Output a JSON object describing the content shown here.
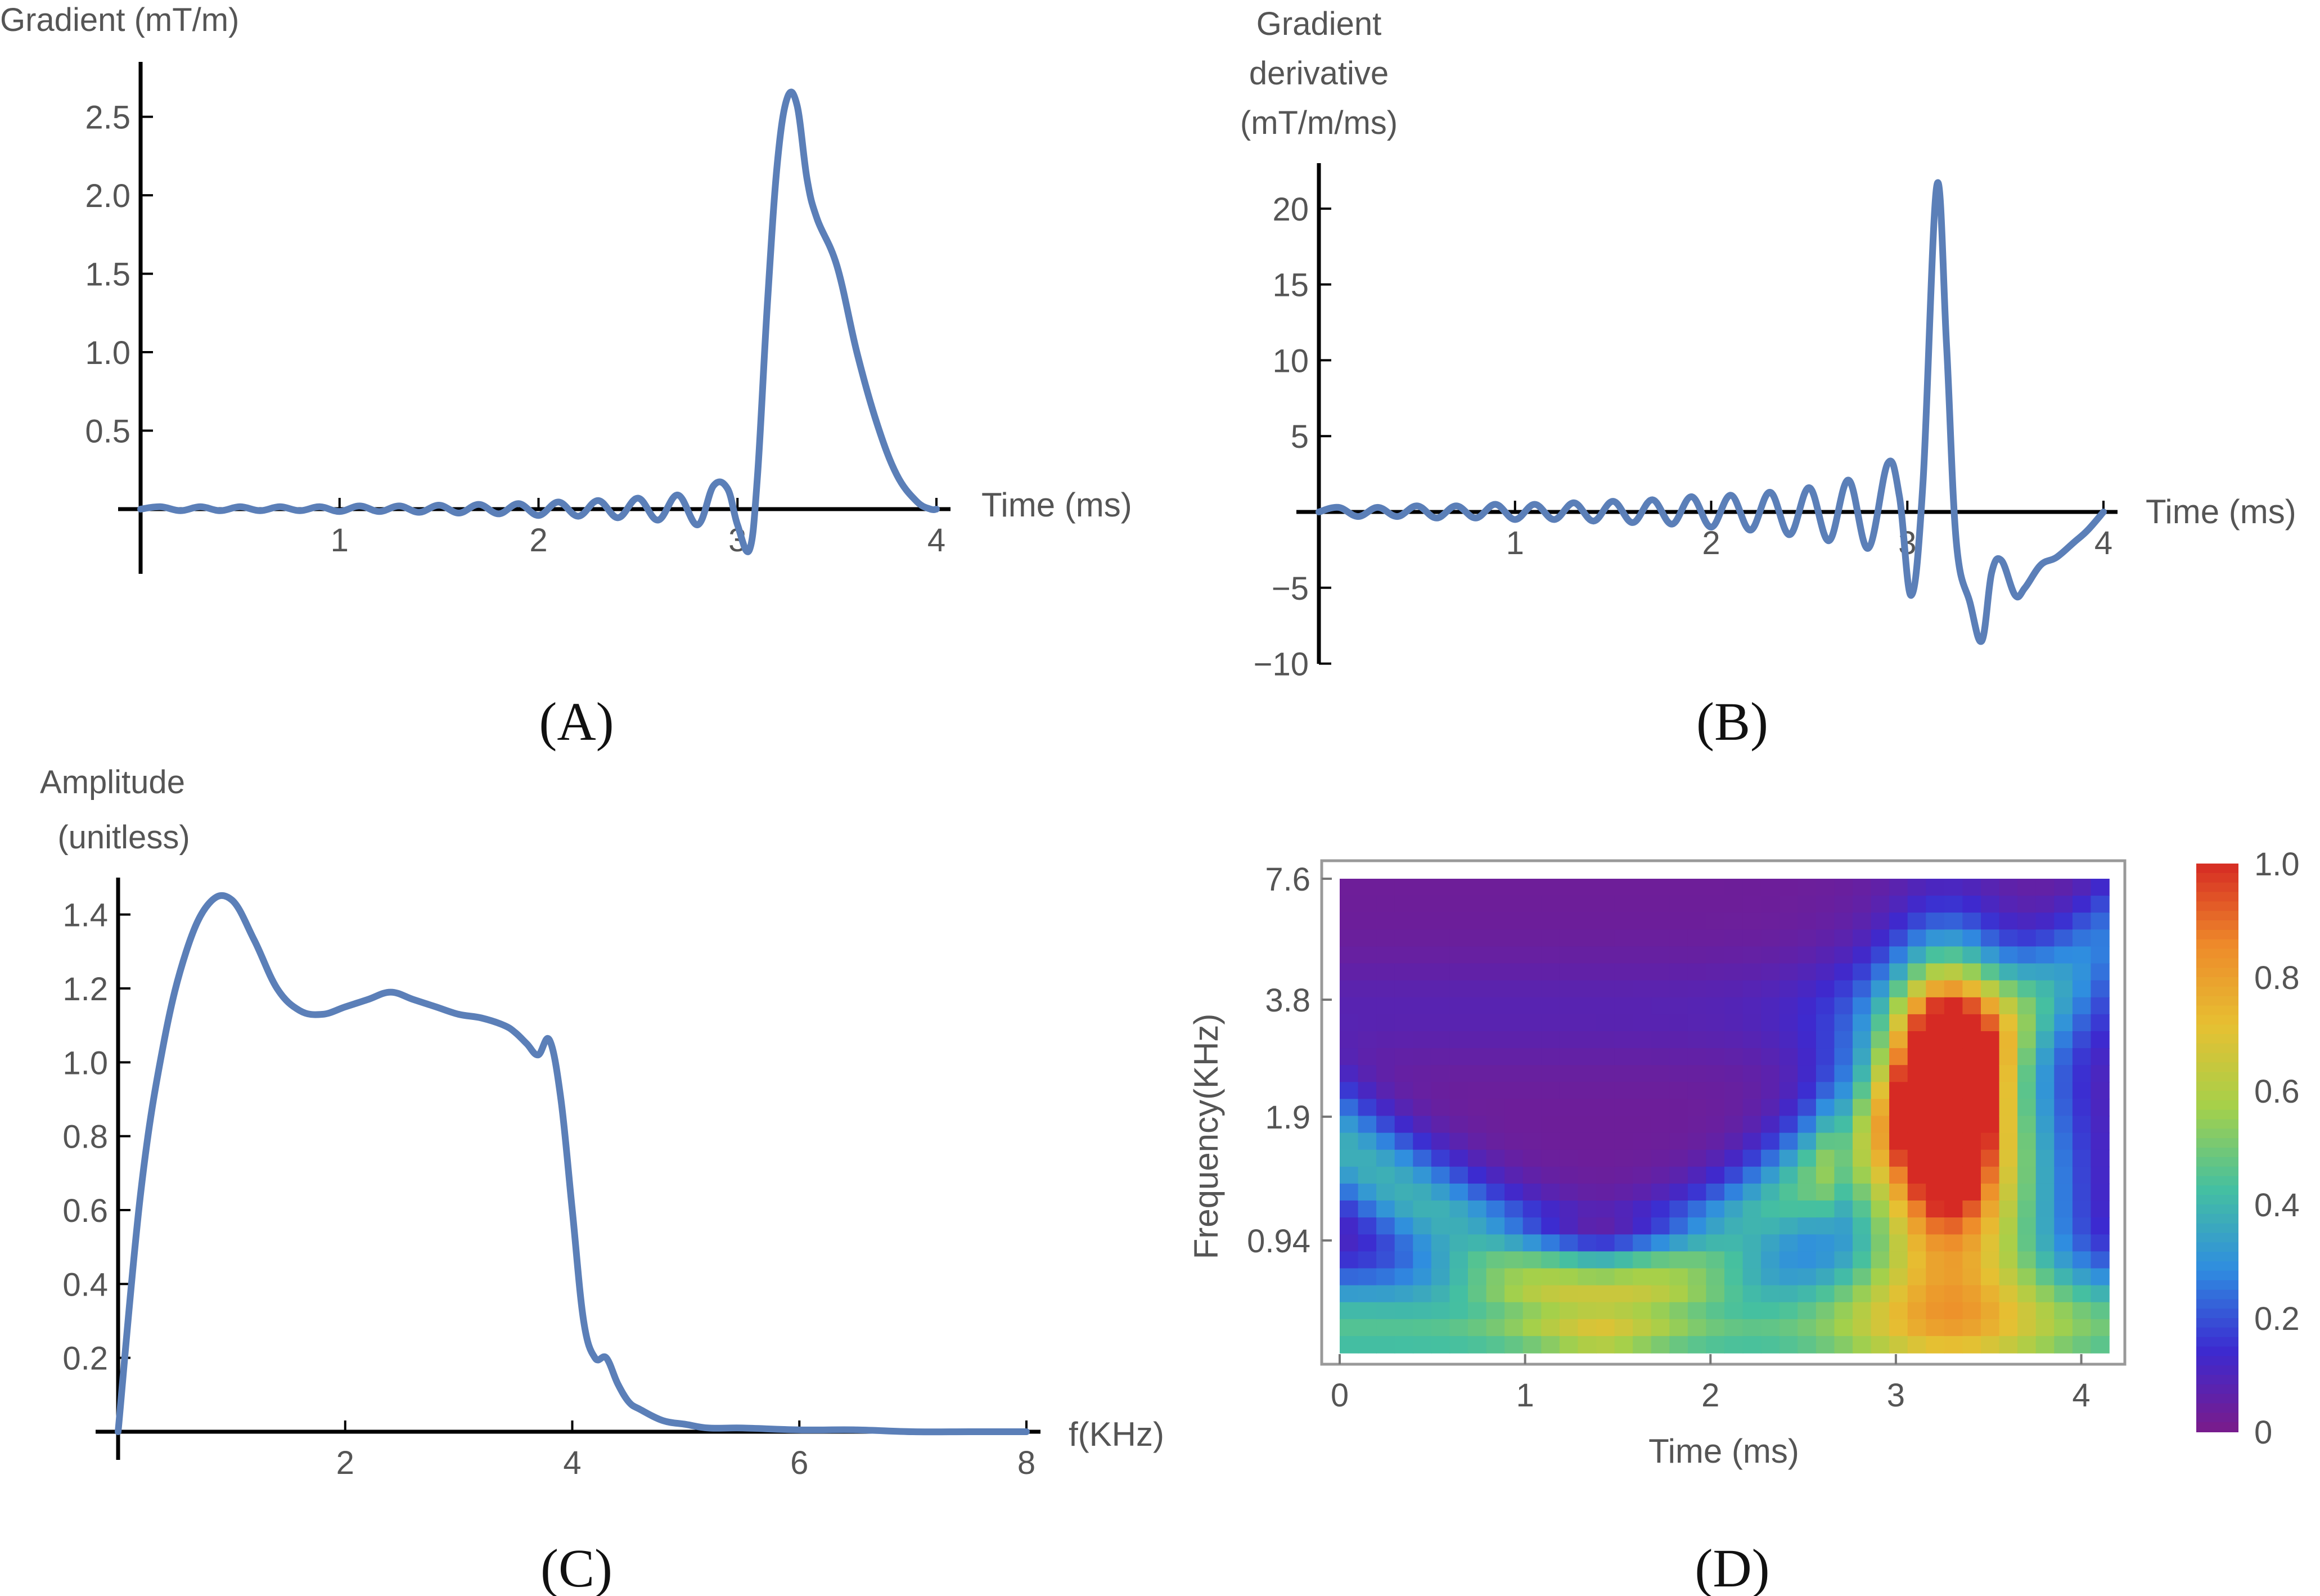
{
  "colors": {
    "curve": "#5b7fb8",
    "axis": "#000000",
    "text": "#555555",
    "heatmap_frame": "#999999"
  },
  "chart_data": [
    {
      "id": "A",
      "type": "line",
      "panel_label": "(A)",
      "ylabel": "Gradient (mT/m)",
      "xlabel": "Time (ms)",
      "xlim": [
        0,
        4
      ],
      "ylim": [
        -0.35,
        2.85
      ],
      "xticks": [
        "1",
        "2",
        "3",
        "4"
      ],
      "yticks": [
        "0.5",
        "1.0",
        "1.5",
        "2.0",
        "2.5"
      ],
      "series": [
        {
          "x": [
            0,
            0.1,
            0.2,
            0.3,
            0.4,
            0.5,
            0.6,
            0.7,
            0.8,
            0.9,
            1.0,
            1.1,
            1.2,
            1.3,
            1.4,
            1.5,
            1.6,
            1.7,
            1.8,
            1.9,
            2.0,
            2.1,
            2.2,
            2.3,
            2.4,
            2.5,
            2.6,
            2.7,
            2.8,
            2.88,
            2.95,
            3.0,
            3.06,
            3.1,
            3.15,
            3.2,
            3.25,
            3.3,
            3.35,
            3.4,
            3.5,
            3.6,
            3.7,
            3.8,
            3.9,
            3.97,
            4.0
          ],
          "y": [
            0,
            0.015,
            -0.01,
            0.015,
            -0.01,
            0.015,
            -0.01,
            0.015,
            -0.01,
            0.015,
            -0.015,
            0.02,
            -0.015,
            0.02,
            -0.02,
            0.025,
            -0.025,
            0.03,
            -0.03,
            0.035,
            -0.04,
            0.045,
            -0.045,
            0.055,
            -0.055,
            0.07,
            -0.07,
            0.09,
            -0.1,
            0.15,
            0.13,
            -0.1,
            -0.26,
            0.2,
            1.3,
            2.2,
            2.62,
            2.57,
            2.1,
            1.85,
            1.55,
            1.0,
            0.55,
            0.22,
            0.05,
            0.0,
            0.0
          ]
        }
      ]
    },
    {
      "id": "B",
      "type": "line",
      "panel_label": "(B)",
      "ylabel": [
        "Gradient",
        "derivative",
        "(mT/m/ms)"
      ],
      "xlabel": "Time (ms)",
      "xlim": [
        0,
        4
      ],
      "ylim": [
        -10,
        23
      ],
      "xticks": [
        "1",
        "2",
        "3",
        "4"
      ],
      "yticks": [
        "−10",
        "−5",
        "5",
        "10",
        "15",
        "20"
      ],
      "series": [
        {
          "x": [
            0,
            0.1,
            0.2,
            0.3,
            0.4,
            0.5,
            0.6,
            0.7,
            0.8,
            0.9,
            1.0,
            1.1,
            1.2,
            1.3,
            1.4,
            1.5,
            1.6,
            1.7,
            1.8,
            1.9,
            2.0,
            2.1,
            2.2,
            2.3,
            2.4,
            2.5,
            2.6,
            2.7,
            2.8,
            2.9,
            2.96,
            3.02,
            3.08,
            3.15,
            3.2,
            3.25,
            3.32,
            3.38,
            3.43,
            3.48,
            3.55,
            3.6,
            3.68,
            3.76,
            3.85,
            3.92,
            4.0
          ],
          "y": [
            0,
            0.3,
            -0.3,
            0.3,
            -0.3,
            0.4,
            -0.4,
            0.4,
            -0.4,
            0.5,
            -0.5,
            0.5,
            -0.5,
            0.6,
            -0.6,
            0.7,
            -0.7,
            0.8,
            -0.8,
            1.0,
            -1.0,
            1.1,
            -1.2,
            1.3,
            -1.5,
            1.6,
            -1.9,
            2.1,
            -2.4,
            3.2,
            1.0,
            -5.5,
            2.0,
            21.5,
            11.0,
            -2.0,
            -6.0,
            -8.5,
            -4.0,
            -3.2,
            -5.5,
            -5.0,
            -3.5,
            -3.0,
            -2.0,
            -1.2,
            0.0
          ]
        }
      ]
    },
    {
      "id": "C",
      "type": "line",
      "panel_label": "(C)",
      "ylabel": [
        "Amplitude",
        "(unitless)"
      ],
      "xlabel": "f(KHz)",
      "xlim": [
        0,
        8
      ],
      "ylim": [
        0,
        1.5
      ],
      "xticks": [
        "2",
        "4",
        "6",
        "8"
      ],
      "yticks": [
        "0.2",
        "0.4",
        "0.6",
        "0.8",
        "1.0",
        "1.2",
        "1.4"
      ],
      "series": [
        {
          "x": [
            0,
            0.2,
            0.4,
            0.6,
            0.8,
            1.0,
            1.2,
            1.4,
            1.6,
            1.8,
            2.0,
            2.2,
            2.4,
            2.6,
            2.8,
            3.0,
            3.2,
            3.4,
            3.5,
            3.6,
            3.7,
            3.8,
            3.9,
            4.0,
            4.1,
            4.2,
            4.3,
            4.4,
            4.5,
            4.6,
            4.8,
            5.0,
            5.2,
            5.5,
            6.0,
            6.5,
            7.0,
            7.5,
            8.0
          ],
          "y": [
            0,
            0.65,
            1.05,
            1.3,
            1.43,
            1.44,
            1.33,
            1.2,
            1.14,
            1.13,
            1.15,
            1.17,
            1.19,
            1.17,
            1.15,
            1.13,
            1.12,
            1.1,
            1.08,
            1.05,
            1.02,
            1.06,
            0.9,
            0.6,
            0.3,
            0.2,
            0.2,
            0.13,
            0.08,
            0.06,
            0.03,
            0.02,
            0.01,
            0.01,
            0.005,
            0.005,
            0.0,
            0.0,
            0.0
          ]
        }
      ]
    },
    {
      "id": "D",
      "type": "heatmap",
      "panel_label": "(D)",
      "xlabel": "Time (ms)",
      "ylabel": "Frequency(KHz)",
      "xlim": [
        0,
        4.15
      ],
      "xticks": [
        "0",
        "1",
        "2",
        "3",
        "4"
      ],
      "yticks": [
        "7.6",
        "3.8",
        "1.9",
        "0.94"
      ],
      "colorbar_ticks": [
        "0",
        "0.2",
        "0.4",
        "0.6",
        "0.8",
        "1.0"
      ],
      "colorbar_range": [
        0,
        1
      ],
      "colormap": [
        "#7b1b8a",
        "#3c2ad0",
        "#2f8de0",
        "#45c0a0",
        "#a5d04a",
        "#e6c032",
        "#ee8a2a",
        "#d62a24"
      ],
      "grid": {
        "n_time": 42,
        "n_freq": 28,
        "description": "scalogram values 0..1"
      }
    }
  ]
}
